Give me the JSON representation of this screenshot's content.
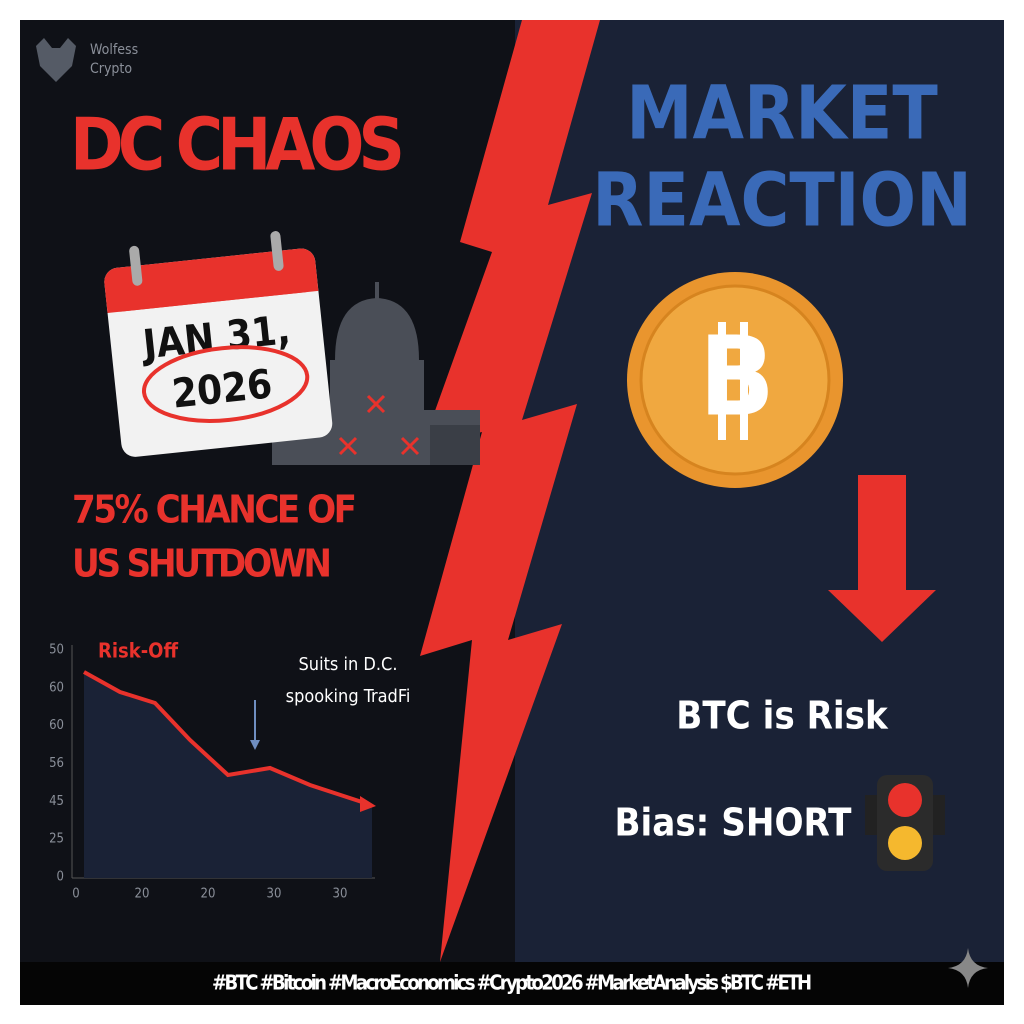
{
  "brand": {
    "name": "Wolfess",
    "sub": "Crypto"
  },
  "left": {
    "title": "DC CHAOS",
    "calendar": {
      "line1": "JAN 31,",
      "line2": "2026"
    },
    "headline": {
      "line1": "75% CHANCE OF",
      "line2": "US SHUTDOWN"
    }
  },
  "mini_chart": {
    "label": "Risk-Off",
    "annotation": {
      "line1": "Suits in D.C.",
      "line2": "spooking TradFi"
    },
    "y_labels": [
      "50",
      "60",
      "60",
      "56",
      "45",
      "25",
      "0"
    ],
    "x_labels": [
      "0",
      "20",
      "20",
      "30",
      "30"
    ]
  },
  "right": {
    "title": {
      "line1": "MARKET",
      "line2": "REACTION"
    },
    "coin": "B",
    "statement": "BTC is Risk",
    "bias": "Bias: SHORT"
  },
  "footer": "#BTC #Bitcoin #MacroEconomics #Crypto2026 #MarketAnalysis $BTC #ETH"
}
